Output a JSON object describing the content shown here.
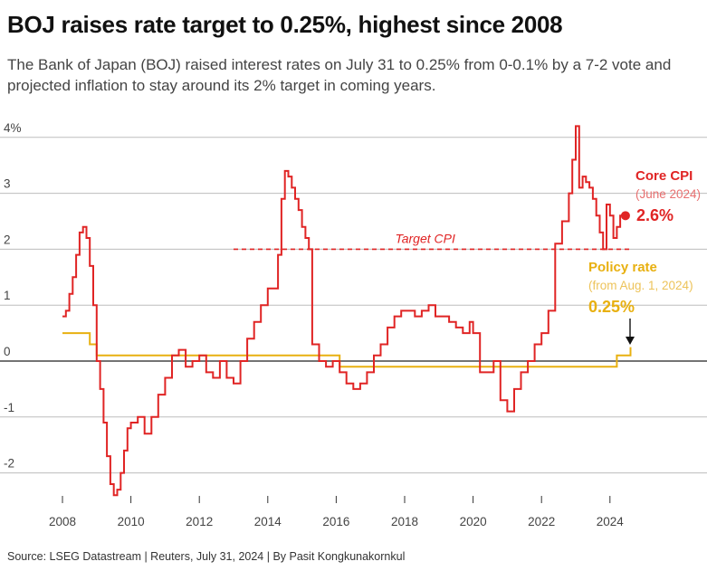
{
  "title": "BOJ raises rate target to 0.25%, highest since 2008",
  "subtitle": "The Bank of Japan (BOJ) raised interest rates on July 31 to 0.25% from 0-0.1% by a 7-2 vote and projected inflation to stay around its 2% target in coming years.",
  "source": "Source: LSEG Datastream | Reuters, July 31, 2024 | By Pasit Kongkunakornkul",
  "colors": {
    "core_cpi": "#e02424",
    "policy_rate": "#e8b010",
    "grid": "#bdbdbd",
    "zero": "#222222"
  },
  "chart_data": {
    "type": "line",
    "xlim": [
      2007.7,
      2025.8
    ],
    "ylim": [
      -2.5,
      4.3
    ],
    "x_ticks": [
      2008,
      2010,
      2012,
      2014,
      2016,
      2018,
      2020,
      2022,
      2024
    ],
    "y_ticks": [
      4,
      3,
      2,
      1,
      0,
      -1,
      -2
    ],
    "y_tick_labels": [
      "4%",
      "3",
      "2",
      "1",
      "0",
      "-1",
      "-2"
    ],
    "grid": "horizontal",
    "series": [
      {
        "name": "Core CPI",
        "sublabel": "(June 2024)",
        "last_value_label": "2.6%",
        "x": [
          2008.0,
          2008.1,
          2008.2,
          2008.3,
          2008.4,
          2008.5,
          2008.6,
          2008.7,
          2008.8,
          2008.9,
          2009.0,
          2009.1,
          2009.2,
          2009.3,
          2009.4,
          2009.5,
          2009.6,
          2009.7,
          2009.8,
          2009.9,
          2010.0,
          2010.2,
          2010.4,
          2010.6,
          2010.8,
          2011.0,
          2011.2,
          2011.4,
          2011.6,
          2011.8,
          2012.0,
          2012.2,
          2012.4,
          2012.6,
          2012.8,
          2013.0,
          2013.2,
          2013.4,
          2013.6,
          2013.8,
          2014.0,
          2014.2,
          2014.3,
          2014.4,
          2014.5,
          2014.6,
          2014.7,
          2014.8,
          2014.9,
          2015.0,
          2015.1,
          2015.2,
          2015.3,
          2015.5,
          2015.7,
          2015.9,
          2016.1,
          2016.3,
          2016.5,
          2016.7,
          2016.9,
          2017.1,
          2017.3,
          2017.5,
          2017.7,
          2017.9,
          2018.1,
          2018.3,
          2018.5,
          2018.7,
          2018.9,
          2019.1,
          2019.3,
          2019.5,
          2019.7,
          2019.9,
          2020.0,
          2020.2,
          2020.4,
          2020.6,
          2020.8,
          2021.0,
          2021.2,
          2021.4,
          2021.6,
          2021.8,
          2022.0,
          2022.2,
          2022.4,
          2022.6,
          2022.8,
          2022.9,
          2023.0,
          2023.1,
          2023.2,
          2023.3,
          2023.4,
          2023.5,
          2023.6,
          2023.7,
          2023.8,
          2023.9,
          2024.0,
          2024.1,
          2024.2,
          2024.3,
          2024.4
        ],
        "y": [
          0.8,
          0.9,
          1.2,
          1.5,
          1.9,
          2.3,
          2.4,
          2.2,
          1.7,
          1.0,
          0.0,
          -0.5,
          -1.1,
          -1.7,
          -2.2,
          -2.4,
          -2.3,
          -2.0,
          -1.6,
          -1.2,
          -1.1,
          -1.0,
          -1.3,
          -1.0,
          -0.6,
          -0.3,
          0.1,
          0.2,
          -0.1,
          0.0,
          0.1,
          -0.2,
          -0.3,
          0.0,
          -0.3,
          -0.4,
          0.0,
          0.4,
          0.7,
          1.0,
          1.3,
          1.3,
          1.9,
          2.9,
          3.4,
          3.3,
          3.1,
          2.9,
          2.7,
          2.4,
          2.2,
          2.0,
          0.3,
          0.0,
          -0.1,
          0.0,
          -0.2,
          -0.4,
          -0.5,
          -0.4,
          -0.2,
          0.1,
          0.3,
          0.6,
          0.8,
          0.9,
          0.9,
          0.8,
          0.9,
          1.0,
          0.8,
          0.8,
          0.7,
          0.6,
          0.5,
          0.7,
          0.5,
          -0.2,
          -0.2,
          0.0,
          -0.7,
          -0.9,
          -0.5,
          -0.2,
          0.0,
          0.3,
          0.5,
          0.9,
          2.1,
          2.5,
          3.0,
          3.6,
          4.2,
          3.1,
          3.3,
          3.2,
          3.1,
          2.9,
          2.6,
          2.3,
          2.0,
          2.8,
          2.6,
          2.2,
          2.4,
          2.6,
          2.6
        ]
      },
      {
        "name": "Policy rate",
        "sublabel": "(from Aug. 1, 2024)",
        "last_value_label": "0.25%",
        "x": [
          2008.0,
          2008.8,
          2008.8,
          2009.0,
          2009.0,
          2016.1,
          2016.1,
          2024.2,
          2024.2,
          2024.6,
          2024.6
        ],
        "y": [
          0.5,
          0.5,
          0.3,
          0.3,
          0.1,
          0.1,
          -0.1,
          -0.1,
          0.1,
          0.1,
          0.25
        ]
      }
    ],
    "annotations": [
      {
        "text": "Target CPI",
        "y": 2
      }
    ]
  }
}
